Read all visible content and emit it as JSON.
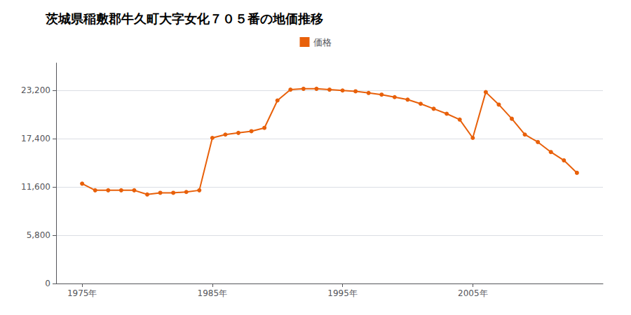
{
  "chart_data": {
    "type": "line",
    "title": "茨城県稲敷郡牛久町大字女化７０５番の地価推移",
    "x": [
      1975,
      1976,
      1977,
      1978,
      1979,
      1980,
      1981,
      1982,
      1983,
      1984,
      1985,
      1986,
      1987,
      1988,
      1989,
      1990,
      1991,
      1992,
      1993,
      1994,
      1995,
      1996,
      1997,
      1998,
      1999,
      2000,
      2001,
      2002,
      2003,
      2004,
      2005,
      2006,
      2007,
      2008,
      2009,
      2010,
      2011,
      2012,
      2013
    ],
    "series": [
      {
        "name": "価格",
        "color": "#e8600a",
        "marker": "circle",
        "values": [
          12000,
          11200,
          11200,
          11200,
          11200,
          10700,
          10900,
          10900,
          11000,
          11200,
          17500,
          17900,
          18100,
          18300,
          18700,
          22000,
          23300,
          23400,
          23400,
          23300,
          23200,
          23100,
          22900,
          22700,
          22400,
          22100,
          21600,
          21000,
          20400,
          19700,
          17500,
          23000,
          21500,
          19800,
          17900,
          17000,
          15800,
          14800,
          13300
        ]
      }
    ],
    "xlim": [
      1973,
      2015
    ],
    "xticks": [
      {
        "value": 1975,
        "label": "1975年"
      },
      {
        "value": 1985,
        "label": "1985年"
      },
      {
        "value": 1995,
        "label": "1995年"
      },
      {
        "value": 2005,
        "label": "2005年"
      }
    ],
    "ylim": [
      0,
      26500
    ],
    "yticks": [
      0,
      {
        "value": 5800,
        "label": "5,800"
      },
      {
        "value": 11600,
        "label": "11,600"
      },
      {
        "value": 17400,
        "label": "17,400"
      },
      {
        "value": 23200,
        "label": "23,200"
      }
    ],
    "grid": true,
    "legend": "top"
  }
}
